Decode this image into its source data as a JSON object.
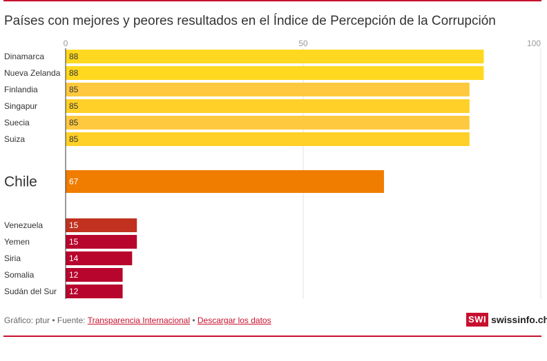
{
  "title": "Países con mejores y peores resultados en el Índice de Percepción de la Corrupción",
  "footer": {
    "prefix": "Gráfico: ptur • Fuente: ",
    "source_link": "Transparencia Internacional",
    "separator": " • ",
    "download_link": "Descargar los datos"
  },
  "logo": {
    "box": "SWI",
    "text": "swissinfo.ch"
  },
  "colors": {
    "accent": "#c8102e",
    "yellow": "#ffd81f",
    "yellow_light": "#ffc93f",
    "orange": "#f07d00",
    "red_brown": "#c03120",
    "red": "#b8052d"
  },
  "chart_data": {
    "type": "bar",
    "orientation": "horizontal",
    "title": "Países con mejores y peores resultados en el Índice de Percepción de la Corrupción",
    "xlim": [
      0,
      100
    ],
    "xticks": [
      0,
      50,
      100
    ],
    "grid": true,
    "groups": [
      {
        "name": "best",
        "rows": [
          {
            "label": "Dinamarca",
            "value": 88,
            "color": "#ffd81f"
          },
          {
            "label": "Nueva Zelanda",
            "value": 88,
            "color": "#ffd81f"
          },
          {
            "label": "Finlandia",
            "value": 85,
            "color": "#ffc93f"
          },
          {
            "label": "Singapur",
            "value": 85,
            "color": "#ffd028"
          },
          {
            "label": "Suecia",
            "value": 85,
            "color": "#ffc93f"
          },
          {
            "label": "Suiza",
            "value": 85,
            "color": "#ffd028"
          }
        ]
      },
      {
        "name": "chile",
        "rows": [
          {
            "label": "Chile",
            "value": 67,
            "color": "#f07d00",
            "highlight": true
          }
        ]
      },
      {
        "name": "worst",
        "rows": [
          {
            "label": "Venezuela",
            "value": 15,
            "color": "#c03120"
          },
          {
            "label": "Yemen",
            "value": 15,
            "color": "#b8052d"
          },
          {
            "label": "Siria",
            "value": 14,
            "color": "#b8052d"
          },
          {
            "label": "Somalia",
            "value": 12,
            "color": "#b8052d"
          },
          {
            "label": "Sudán del Sur",
            "value": 12,
            "color": "#b8052d"
          }
        ]
      }
    ]
  }
}
